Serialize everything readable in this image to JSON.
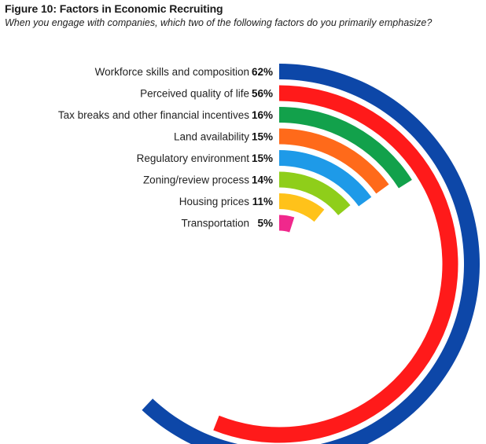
{
  "chart_data": {
    "type": "radial_bar",
    "title": "Figure 10: Factors in Economic Recruiting",
    "subtitle": "When you engage with companies, which two of the following factors do you primarily emphasize?",
    "max_value": 100,
    "categories": [
      "Workforce skills and composition",
      "Perceived quality of life",
      "Tax breaks and other financial incentives",
      "Land availability",
      "Regulatory environment",
      "Zoning/review process",
      "Housing prices",
      "Transportation"
    ],
    "values": [
      62,
      56,
      16,
      15,
      15,
      14,
      11,
      5
    ],
    "value_labels": [
      "62%",
      "56%",
      "16%",
      "15%",
      "15%",
      "14%",
      "11%",
      "5%"
    ],
    "colors": [
      "#0d47a8",
      "#ff1a1a",
      "#12a14b",
      "#ff6a1a",
      "#1e9ae8",
      "#8fce1a",
      "#ffc21a",
      "#f0288c"
    ]
  }
}
